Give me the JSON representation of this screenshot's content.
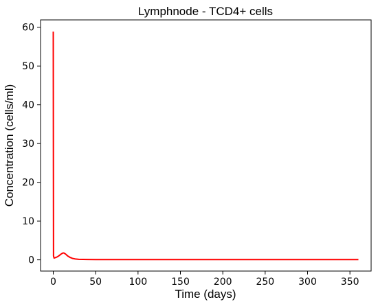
{
  "chart_data": {
    "type": "line",
    "title": "Lymphnode - TCD4+ cells",
    "xlabel": "Time (days)",
    "ylabel": "Concentration (cells/ml)",
    "xlim": [
      -15,
      375
    ],
    "ylim": [
      -2.9,
      61.9
    ],
    "xticks": [
      0,
      50,
      100,
      150,
      200,
      250,
      300,
      350
    ],
    "yticks": [
      0,
      10,
      20,
      30,
      40,
      50,
      60
    ],
    "grid": false,
    "series": [
      {
        "color": "#ff0000",
        "x": [
          0,
          0.3,
          1,
          3,
          5,
          7,
          9,
          11,
          12,
          13,
          15,
          17,
          20,
          23,
          26,
          30,
          35,
          40,
          50,
          60,
          80,
          100,
          150,
          200,
          250,
          300,
          360
        ],
        "y": [
          58.9,
          1.0,
          0.45,
          0.6,
          0.8,
          1.1,
          1.45,
          1.72,
          1.78,
          1.72,
          1.4,
          1.0,
          0.6,
          0.35,
          0.22,
          0.14,
          0.1,
          0.08,
          0.07,
          0.06,
          0.06,
          0.06,
          0.06,
          0.06,
          0.06,
          0.06,
          0.06
        ]
      }
    ]
  }
}
